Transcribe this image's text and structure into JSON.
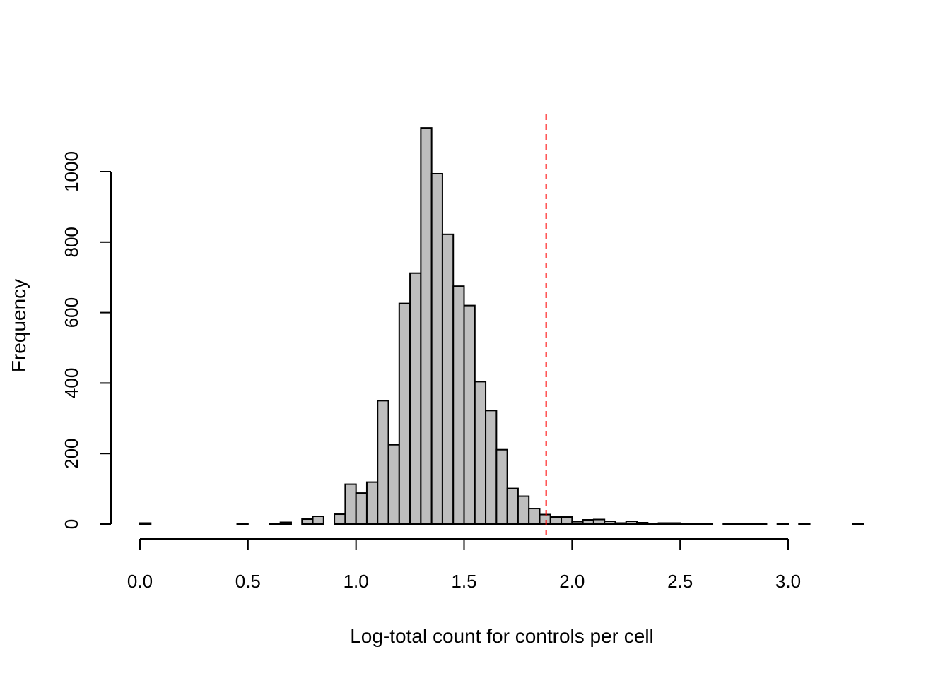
{
  "chart_data": {
    "type": "bar",
    "title": "",
    "xlabel": "Log-total count for controls per cell",
    "ylabel": "Frequency",
    "bin_width": 0.05,
    "bin_start": 0.0,
    "values": [
      3,
      0,
      0,
      0,
      0,
      0,
      0,
      0,
      0,
      1,
      0,
      0,
      2,
      5,
      0,
      14,
      22,
      0,
      28,
      113,
      88,
      119,
      350,
      225,
      626,
      712,
      1124,
      994,
      822,
      675,
      620,
      404,
      322,
      211,
      101,
      79,
      44,
      27,
      20,
      20,
      7,
      12,
      13,
      8,
      3,
      8,
      4,
      2,
      3,
      3,
      1,
      2,
      1,
      0,
      1,
      2,
      1,
      1,
      0,
      1,
      0,
      1,
      0,
      0,
      0,
      0,
      1
    ],
    "xlim": [
      0,
      3.35
    ],
    "ylim": [
      0,
      1124
    ],
    "x_ticks": [
      "0.0",
      "0.5",
      "1.0",
      "1.5",
      "2.0",
      "2.5",
      "3.0"
    ],
    "y_ticks": [
      "0",
      "200",
      "400",
      "600",
      "800",
      "1000"
    ],
    "threshold": 1.88,
    "bar_color": "#bebebe",
    "threshold_color": "#ff0000",
    "grid": false
  }
}
